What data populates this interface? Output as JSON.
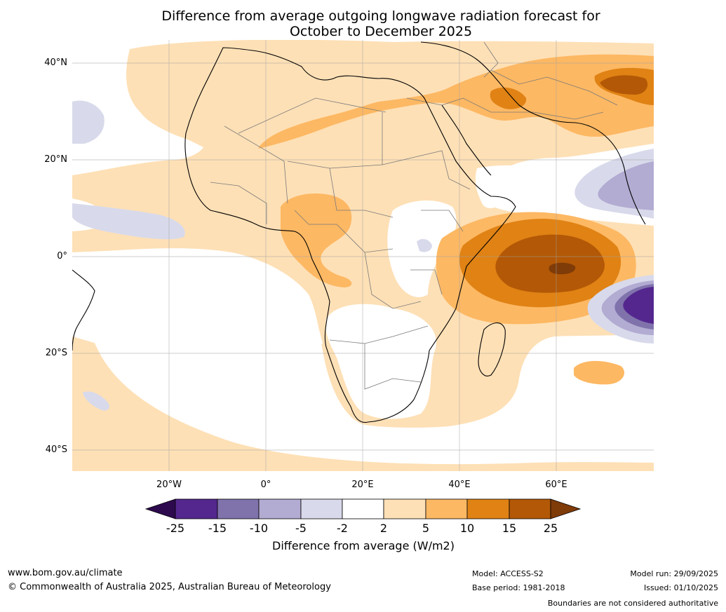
{
  "title": {
    "line1": "Difference from average outgoing longwave radiation forecast for",
    "line2": "October to December 2025"
  },
  "axes": {
    "latitudes": [
      "40°N",
      "20°N",
      "0°",
      "20°S",
      "40°S"
    ],
    "longitudes": [
      "20°W",
      "0°",
      "20°E",
      "40°E",
      "60°E"
    ]
  },
  "colorbar": {
    "title": "Difference from average (W/m2)",
    "ticks": [
      "-25",
      "-15",
      "-10",
      "-5",
      "-2",
      "2",
      "5",
      "10",
      "15",
      "25"
    ],
    "colors": [
      "#2d0a4e",
      "#54278f",
      "#8073ac",
      "#b2abd2",
      "#d8daeb",
      "#ffffff",
      "#fee0b6",
      "#fdb863",
      "#e08214",
      "#b35806",
      "#7f3b08"
    ]
  },
  "footer": {
    "url": "www.bom.gov.au/climate",
    "copyright": "© Commonwealth of Australia 2025, Australian Bureau of Meteorology",
    "model": "Model: ACCESS-S2",
    "base_period": "Base period: 1981-2018",
    "model_run": "Model run: 29/09/2025",
    "issued": "Issued: 01/10/2025",
    "disclaimer": "Boundaries are not considered authoritative"
  }
}
